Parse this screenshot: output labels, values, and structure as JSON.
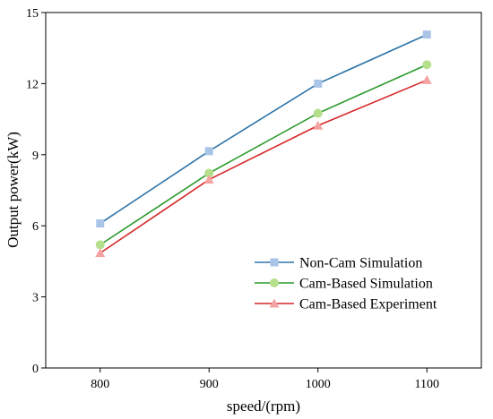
{
  "chart_data": {
    "type": "line",
    "title": "",
    "xlabel": "speed/(rpm)",
    "ylabel": "Output power(kW)",
    "x": [
      800,
      900,
      1000,
      1100
    ],
    "x_ticks": [
      "800",
      "900",
      "1000",
      "1100"
    ],
    "y_ticks": [
      "0",
      "3",
      "6",
      "9",
      "12",
      "15"
    ],
    "xlim": [
      750,
      1150
    ],
    "ylim": [
      0,
      15
    ],
    "grid": false,
    "legend_position": "bottom-right",
    "series": [
      {
        "name": "Non-Cam Simulation",
        "values": [
          6.1,
          9.15,
          12.0,
          14.07
        ],
        "line_color": "#2e74a8",
        "marker_color": "#a9c4e6",
        "marker": "square"
      },
      {
        "name": "Cam-Based Simulation",
        "values": [
          5.2,
          8.22,
          10.75,
          12.8
        ],
        "line_color": "#2c9a2c",
        "marker_color": "#b6df8c",
        "marker": "circle"
      },
      {
        "name": "Cam-Based Experiment",
        "values": [
          4.85,
          7.95,
          10.23,
          12.15
        ],
        "line_color": "#d62728",
        "marker_color": "#f4a3a3",
        "marker": "triangle"
      }
    ]
  }
}
